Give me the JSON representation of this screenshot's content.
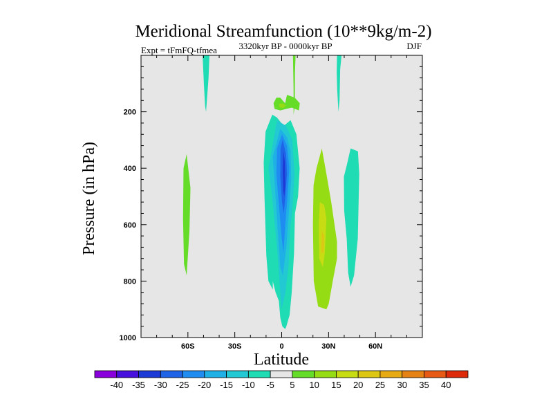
{
  "chart_data": {
    "type": "contour",
    "title": "Meridional Streamfunction (10**9kg/m-2)",
    "left_label": "Expt = tFmFQ-tfmea",
    "center_label": "3320kyr BP - 0000kyr BP",
    "right_label": "DJF",
    "xlabel": "Latitude",
    "ylabel": "Pressure (in hPa)",
    "xlim": [
      -90,
      90
    ],
    "ylim": [
      1000,
      0
    ],
    "x_ticks": [
      {
        "value": -60,
        "label": "60S"
      },
      {
        "value": -30,
        "label": "30S"
      },
      {
        "value": 0,
        "label": "0"
      },
      {
        "value": 30,
        "label": "30N"
      },
      {
        "value": 60,
        "label": "60N"
      }
    ],
    "y_ticks": [
      {
        "value": 200,
        "label": "200"
      },
      {
        "value": 400,
        "label": "400"
      },
      {
        "value": 600,
        "label": "600"
      },
      {
        "value": 800,
        "label": "800"
      },
      {
        "value": 1000,
        "label": "1000"
      }
    ],
    "colorbar": {
      "labels": [
        "-40",
        "-35",
        "-30",
        "-25",
        "-20",
        "-15",
        "-10",
        "-5",
        "5",
        "10",
        "15",
        "20",
        "25",
        "30",
        "35",
        "40"
      ],
      "colors": [
        "#8a00dc",
        "#4810dc",
        "#1e3ad6",
        "#1f64e6",
        "#1e8cf0",
        "#1fb1e6",
        "#22c8d2",
        "#1fdcb4",
        "#e6e6e6",
        "#64dc28",
        "#96dc14",
        "#c8dc14",
        "#dcc814",
        "#e6aa14",
        "#e68214",
        "#e65a14",
        "#dc2a0a"
      ]
    },
    "regions": [
      {
        "name": "sh-upper-positive",
        "level": "-5",
        "points": [
          [
            -50.6,
            0
          ],
          [
            -46.2,
            0
          ],
          [
            -46.8,
            80
          ],
          [
            -47.6,
            140
          ],
          [
            -48.4,
            200
          ],
          [
            -49.0,
            180
          ],
          [
            -49.8,
            100
          ]
        ]
      },
      {
        "name": "sh-mid-positive",
        "level": "5",
        "points": [
          [
            -60.8,
            350
          ],
          [
            -58.4,
            470
          ],
          [
            -59.0,
            620
          ],
          [
            -60.8,
            780
          ],
          [
            -62.5,
            740
          ],
          [
            -63.1,
            580
          ],
          [
            -62.8,
            400
          ]
        ]
      },
      {
        "name": "tropical-negative-outer",
        "level": "-5",
        "points": [
          [
            -10.3,
            270
          ],
          [
            -6.0,
            210
          ],
          [
            -3.1,
            220
          ],
          [
            1.3,
            250
          ],
          [
            5.7,
            230
          ],
          [
            9.4,
            280
          ],
          [
            11.5,
            400
          ],
          [
            10.5,
            500
          ],
          [
            8.5,
            560
          ],
          [
            7.9,
            700
          ],
          [
            6.4,
            840
          ],
          [
            5.1,
            920
          ],
          [
            3.0,
            960
          ],
          [
            2.2,
            970
          ],
          [
            0.4,
            960
          ],
          [
            -0.9,
            930
          ],
          [
            -1.8,
            870
          ],
          [
            -3.9,
            840
          ],
          [
            -5.7,
            800
          ],
          [
            -5.7,
            830
          ],
          [
            -8.5,
            800
          ],
          [
            -9.8,
            710
          ],
          [
            -11.0,
            500
          ],
          [
            -11.5,
            380
          ]
        ]
      },
      {
        "name": "tropical-negative-2",
        "level": "-10",
        "points": [
          [
            -3.0,
            230
          ],
          [
            2.8,
            250
          ],
          [
            6.8,
            300
          ],
          [
            8.2,
            420
          ],
          [
            7.0,
            530
          ],
          [
            5.4,
            620
          ],
          [
            4.5,
            740
          ],
          [
            2.4,
            840
          ],
          [
            -0.1,
            900
          ],
          [
            -2.7,
            700
          ],
          [
            -6.1,
            500
          ],
          [
            -8.4,
            400
          ]
        ]
      },
      {
        "name": "tropical-negative-3",
        "level": "-15",
        "points": [
          [
            -0.9,
            260
          ],
          [
            3.4,
            290
          ],
          [
            5.7,
            340
          ],
          [
            6.1,
            440
          ],
          [
            4.5,
            560
          ],
          [
            3.0,
            680
          ],
          [
            0.7,
            780
          ],
          [
            -0.9,
            750
          ],
          [
            -3.0,
            580
          ],
          [
            -4.5,
            450
          ],
          [
            -5.7,
            360
          ]
        ]
      },
      {
        "name": "tropical-negative-4",
        "level": "-20",
        "points": [
          [
            0.2,
            280
          ],
          [
            3.4,
            320
          ],
          [
            4.9,
            400
          ],
          [
            3.7,
            500
          ],
          [
            2.1,
            620
          ],
          [
            1.1,
            700
          ],
          [
            0.1,
            650
          ],
          [
            -2.2,
            500
          ],
          [
            -3.4,
            420
          ],
          [
            -3.0,
            330
          ]
        ]
      },
      {
        "name": "tropical-negative-5",
        "level": "-25",
        "points": [
          [
            0.6,
            300
          ],
          [
            2.8,
            350
          ],
          [
            3.4,
            420
          ],
          [
            2.4,
            500
          ],
          [
            1.3,
            560
          ],
          [
            0.2,
            520
          ],
          [
            -0.9,
            430
          ],
          [
            -0.7,
            330
          ]
        ]
      },
      {
        "name": "tropical-negative-core",
        "level": "-30",
        "points": [
          [
            1.1,
            340
          ],
          [
            2.1,
            380
          ],
          [
            2.3,
            460
          ],
          [
            1.7,
            500
          ],
          [
            1.0,
            480
          ],
          [
            0.6,
            400
          ]
        ]
      },
      {
        "name": "upper-thin-positive",
        "level": "5",
        "points": [
          [
            7.2,
            0
          ],
          [
            8.9,
            0
          ],
          [
            8.5,
            60
          ],
          [
            8.4,
            180
          ],
          [
            7.6,
            210
          ],
          [
            7.6,
            120
          ]
        ]
      },
      {
        "name": "upper-blob-positive",
        "level": "5",
        "points": [
          [
            -3.4,
            150
          ],
          [
            -0.9,
            150
          ],
          [
            2.2,
            170
          ],
          [
            3.4,
            140
          ],
          [
            8.4,
            150
          ],
          [
            11.6,
            170
          ],
          [
            11.0,
            195
          ],
          [
            6.4,
            185
          ],
          [
            -0.9,
            195
          ],
          [
            -4.5,
            190
          ],
          [
            -5.2,
            170
          ]
        ]
      },
      {
        "name": "upper-blob-10",
        "level": "10",
        "points": [
          [
            -1.8,
            172
          ],
          [
            0.8,
            170
          ],
          [
            2.8,
            178
          ],
          [
            1.2,
            186
          ],
          [
            -1.3,
            185
          ]
        ]
      },
      {
        "name": "nh-upper-positive",
        "level": "-5",
        "points": [
          [
            35.4,
            0
          ],
          [
            38.3,
            0
          ],
          [
            37.4,
            50
          ],
          [
            37.0,
            160
          ],
          [
            36.3,
            200
          ],
          [
            35.5,
            120
          ],
          [
            35.2,
            60
          ]
        ]
      },
      {
        "name": "nh-mid-positive",
        "level": "10",
        "points": [
          [
            22.3,
            400
          ],
          [
            25.7,
            330
          ],
          [
            28.6,
            420
          ],
          [
            31.7,
            520
          ],
          [
            35.4,
            660
          ],
          [
            35.4,
            720
          ],
          [
            32.7,
            800
          ],
          [
            30.1,
            880
          ],
          [
            28.6,
            900
          ],
          [
            23.3,
            890
          ],
          [
            20.5,
            800
          ],
          [
            20.0,
            600
          ],
          [
            20.4,
            460
          ]
        ]
      },
      {
        "name": "nh-mid-15",
        "level": "15",
        "points": [
          [
            24.4,
            520
          ],
          [
            27.2,
            530
          ],
          [
            28.6,
            580
          ],
          [
            27.6,
            700
          ],
          [
            26.3,
            750
          ],
          [
            24.0,
            720
          ],
          [
            23.7,
            600
          ]
        ]
      },
      {
        "name": "nh-mid-20",
        "level": "20",
        "points": [
          [
            25.6,
            620
          ],
          [
            27.2,
            640
          ],
          [
            26.8,
            700
          ],
          [
            25.4,
            700
          ]
        ]
      },
      {
        "name": "nh-negative-right",
        "level": "-5",
        "points": [
          [
            41.6,
            390
          ],
          [
            44.1,
            330
          ],
          [
            48.8,
            340
          ],
          [
            49.6,
            420
          ],
          [
            48.7,
            650
          ],
          [
            46.3,
            780
          ],
          [
            44.1,
            820
          ],
          [
            42.5,
            770
          ],
          [
            41.6,
            650
          ],
          [
            40.0,
            550
          ],
          [
            39.8,
            430
          ]
        ]
      }
    ]
  }
}
